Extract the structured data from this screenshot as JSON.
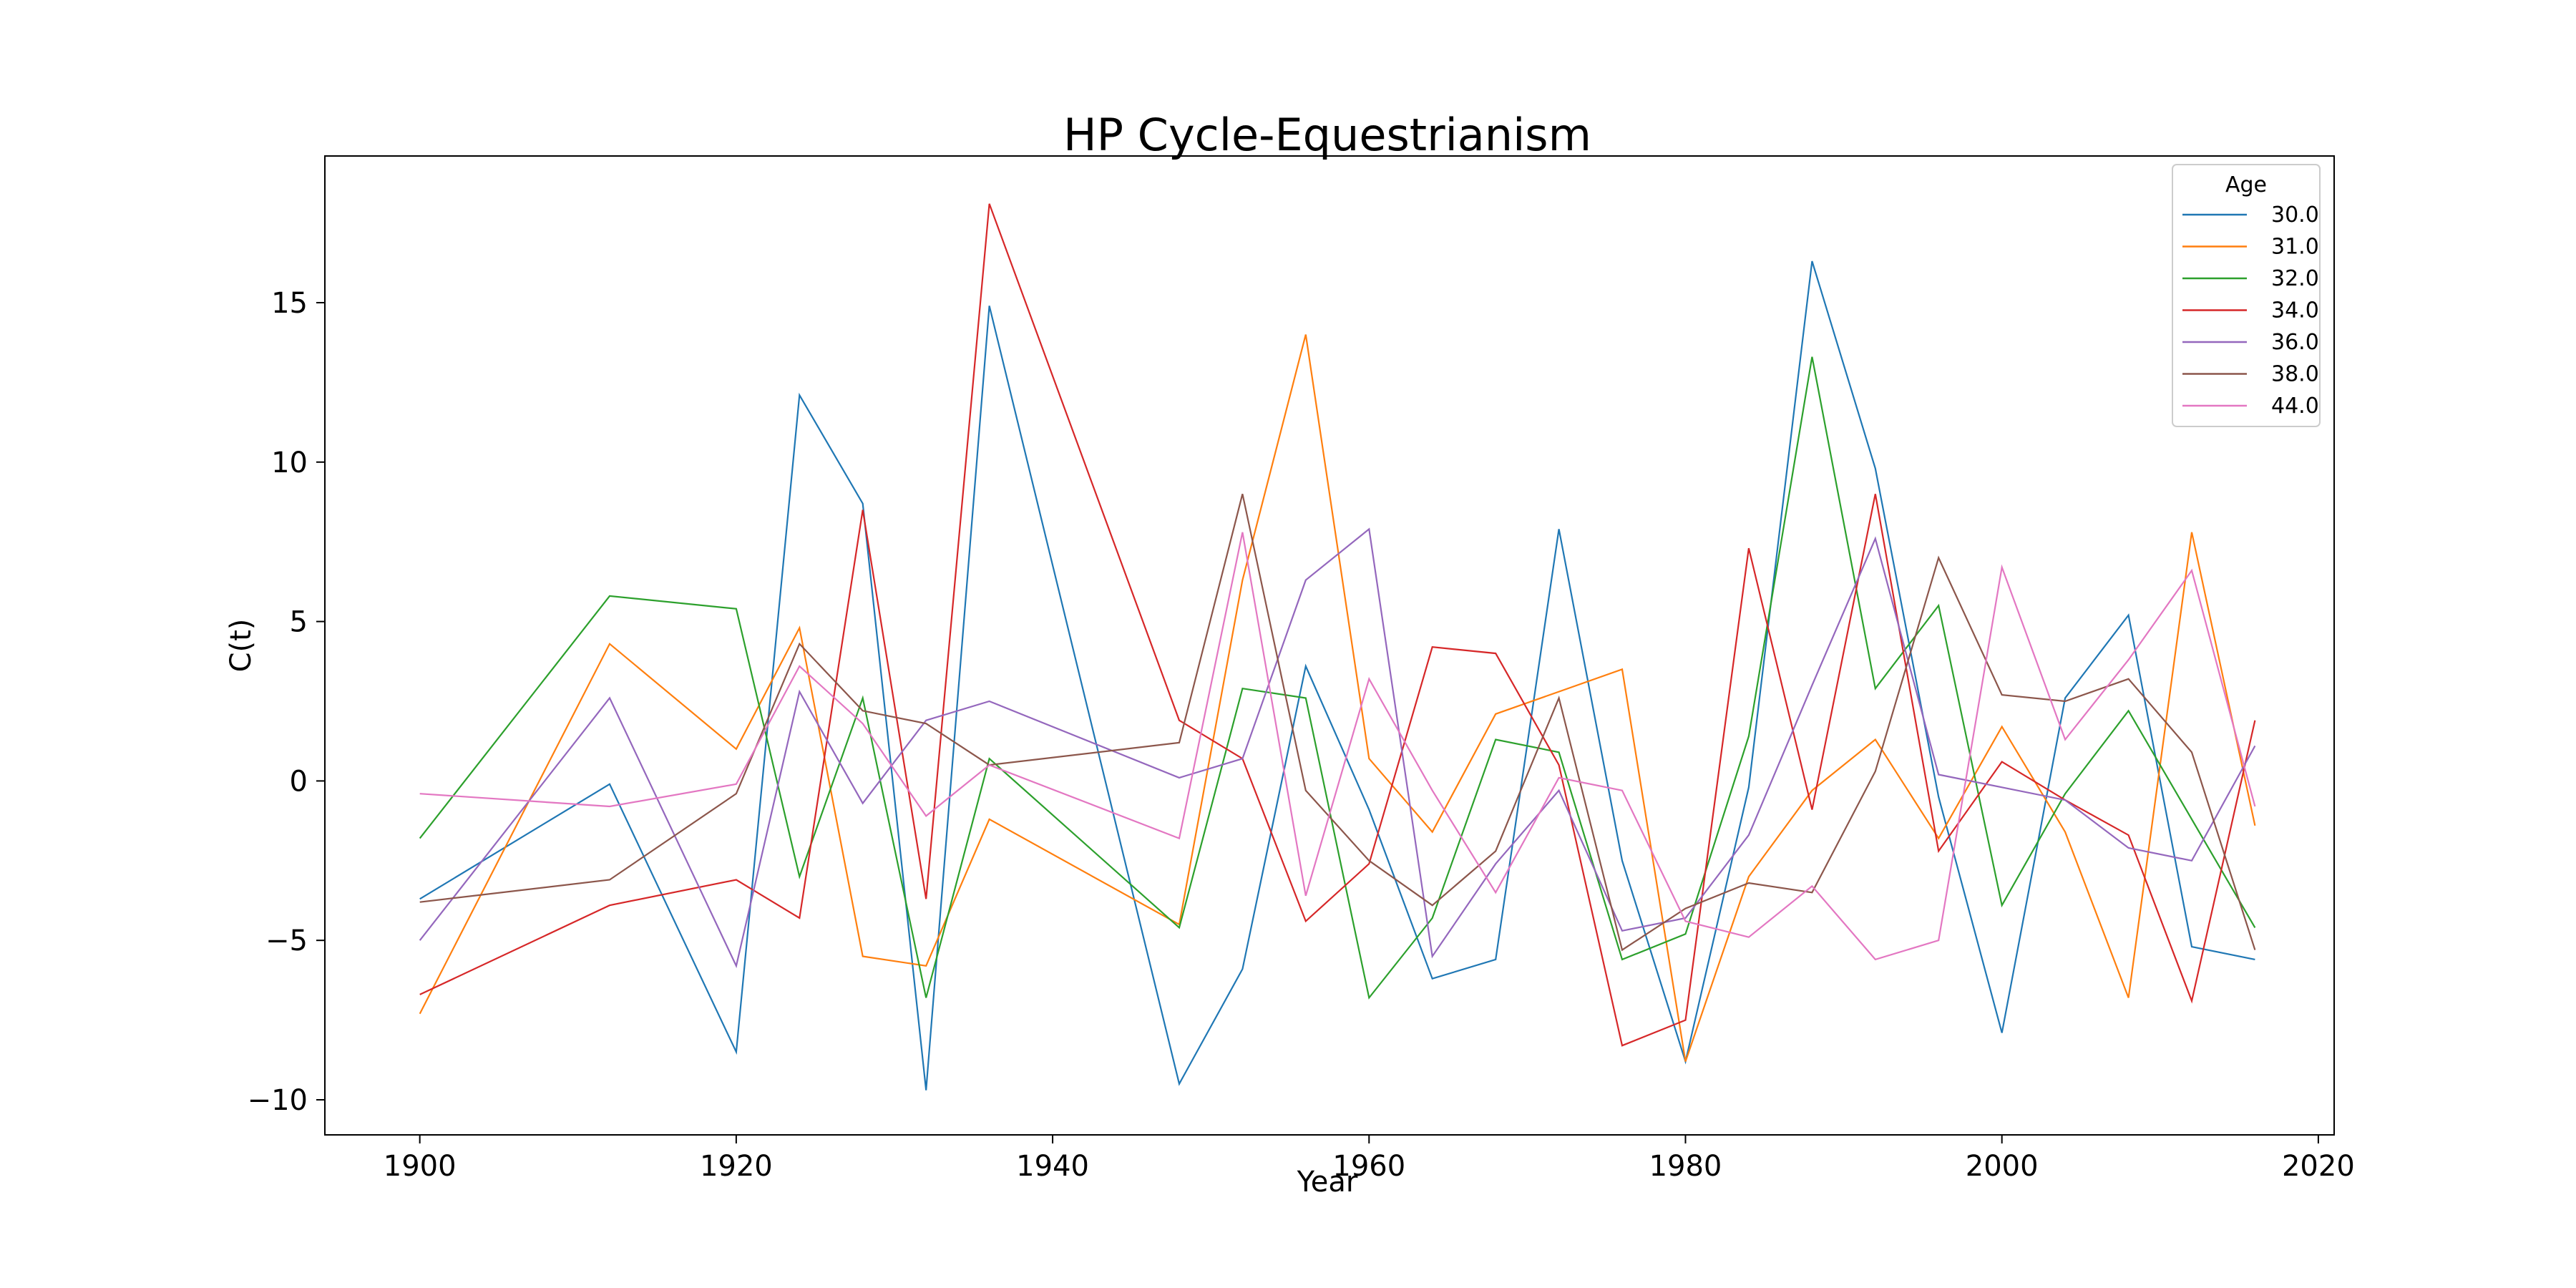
{
  "chart_data": {
    "type": "line",
    "title": "HP Cycle-Equestrianism",
    "xlabel": "Year",
    "ylabel": "C(t)",
    "xlim": [
      1894,
      2021
    ],
    "ylim": [
      -11.1,
      19.6
    ],
    "xticks": [
      1900,
      1920,
      1940,
      1960,
      1980,
      2000,
      2020
    ],
    "yticks": [
      15,
      10,
      5,
      0,
      -5,
      -10
    ],
    "ytick_labels": [
      "15",
      "10",
      "5",
      "0",
      "−5",
      "−10"
    ],
    "grid": false,
    "legend": {
      "title": "Age",
      "placement": "top-right"
    },
    "x": [
      1900,
      1912,
      1920,
      1924,
      1928,
      1932,
      1936,
      1948,
      1952,
      1956,
      1960,
      1964,
      1968,
      1972,
      1976,
      1980,
      1984,
      1988,
      1992,
      1996,
      2000,
      2004,
      2008,
      2012,
      2016
    ],
    "series": [
      {
        "name": "30.0",
        "color": "#1f77b4",
        "values": [
          -3.7,
          -0.1,
          -8.5,
          12.1,
          8.7,
          -9.7,
          14.9,
          -9.5,
          -5.9,
          3.6,
          -0.9,
          -6.2,
          -5.6,
          7.9,
          -2.5,
          -8.8,
          -0.2,
          16.3,
          9.8,
          -0.5,
          -7.9,
          2.6,
          5.2,
          -5.2,
          -5.6
        ]
      },
      {
        "name": "31.0",
        "color": "#ff7f0e",
        "values": [
          -7.3,
          4.3,
          1.0,
          4.8,
          -5.5,
          -5.8,
          -1.2,
          -4.5,
          6.3,
          14.0,
          0.7,
          -1.6,
          2.1,
          2.8,
          3.5,
          -8.8,
          -3.0,
          -0.3,
          1.3,
          -1.8,
          1.7,
          -1.6,
          -6.8,
          7.8,
          -1.4
        ]
      },
      {
        "name": "32.0",
        "color": "#2ca02c",
        "values": [
          -1.8,
          5.8,
          5.4,
          -3.0,
          2.6,
          -6.8,
          0.7,
          -4.6,
          2.9,
          2.6,
          -6.8,
          -4.3,
          1.3,
          0.9,
          -5.6,
          -4.8,
          1.4,
          13.3,
          2.9,
          5.5,
          -3.9,
          -0.4,
          2.2,
          -1.2,
          -4.6
        ]
      },
      {
        "name": "34.0",
        "color": "#d62728",
        "values": [
          -6.7,
          -3.9,
          -3.1,
          -4.3,
          8.5,
          -3.7,
          18.1,
          1.9,
          0.7,
          -4.4,
          -2.6,
          4.2,
          4.0,
          0.5,
          -8.3,
          -7.5,
          7.3,
          -0.9,
          9.0,
          -2.2,
          0.6,
          -0.6,
          -1.7,
          -6.9,
          1.9
        ]
      },
      {
        "name": "36.0",
        "color": "#9467bd",
        "values": [
          -5.0,
          2.6,
          -5.8,
          2.8,
          -0.7,
          1.9,
          2.5,
          0.1,
          0.7,
          6.3,
          7.9,
          -5.5,
          -2.6,
          -0.3,
          -4.7,
          -4.3,
          -1.7,
          3.0,
          7.6,
          0.2,
          -0.2,
          -0.6,
          -2.1,
          -2.5,
          1.1
        ]
      },
      {
        "name": "38.0",
        "color": "#8c564b",
        "values": [
          -3.8,
          -3.1,
          -0.4,
          4.3,
          2.2,
          1.8,
          0.5,
          1.2,
          9.0,
          -0.3,
          -2.5,
          -3.9,
          -2.2,
          2.6,
          -5.3,
          -4.0,
          -3.2,
          -3.5,
          0.3,
          7.0,
          2.7,
          2.5,
          3.2,
          0.9,
          -5.3
        ]
      },
      {
        "name": "44.0",
        "color": "#e377c2",
        "values": [
          -0.4,
          -0.8,
          -0.1,
          3.6,
          1.8,
          -1.1,
          0.5,
          -1.8,
          7.8,
          -3.6,
          3.2,
          -0.3,
          -3.5,
          0.1,
          -0.3,
          -4.4,
          -4.9,
          -3.3,
          -5.6,
          -5.0,
          6.7,
          1.3,
          3.8,
          6.6,
          -0.8
        ]
      }
    ]
  }
}
